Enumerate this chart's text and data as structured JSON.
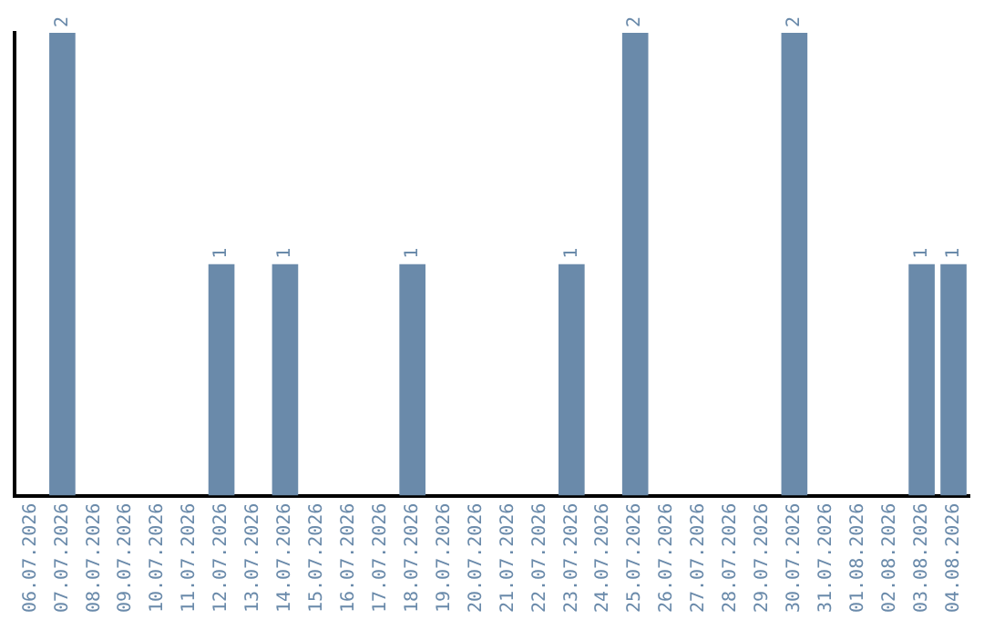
{
  "chart_data": {
    "type": "bar",
    "categories": [
      "06.07.2026",
      "07.07.2026",
      "08.07.2026",
      "09.07.2026",
      "10.07.2026",
      "11.07.2026",
      "12.07.2026",
      "13.07.2026",
      "14.07.2026",
      "15.07.2026",
      "16.07.2026",
      "17.07.2026",
      "18.07.2026",
      "19.07.2026",
      "20.07.2026",
      "21.07.2026",
      "22.07.2026",
      "23.07.2026",
      "24.07.2026",
      "25.07.2026",
      "26.07.2026",
      "27.07.2026",
      "28.07.2026",
      "29.07.2026",
      "30.07.2026",
      "31.07.2026",
      "01.08.2026",
      "02.08.2026",
      "03.08.2026",
      "04.08.2026"
    ],
    "values": [
      0,
      2,
      0,
      0,
      0,
      0,
      1,
      0,
      1,
      0,
      0,
      0,
      1,
      0,
      0,
      0,
      0,
      1,
      0,
      2,
      0,
      0,
      0,
      0,
      2,
      0,
      0,
      0,
      1,
      1
    ],
    "color": "#6a8aaa",
    "ylim": [
      0,
      2
    ],
    "value_labels": [
      null,
      "2",
      null,
      null,
      null,
      null,
      "1",
      null,
      "1",
      null,
      null,
      null,
      "1",
      null,
      null,
      null,
      null,
      "1",
      null,
      "2",
      null,
      null,
      null,
      null,
      "2",
      null,
      null,
      null,
      "1",
      "1"
    ],
    "grid": false,
    "legend": false,
    "tick_labels": "x"
  }
}
